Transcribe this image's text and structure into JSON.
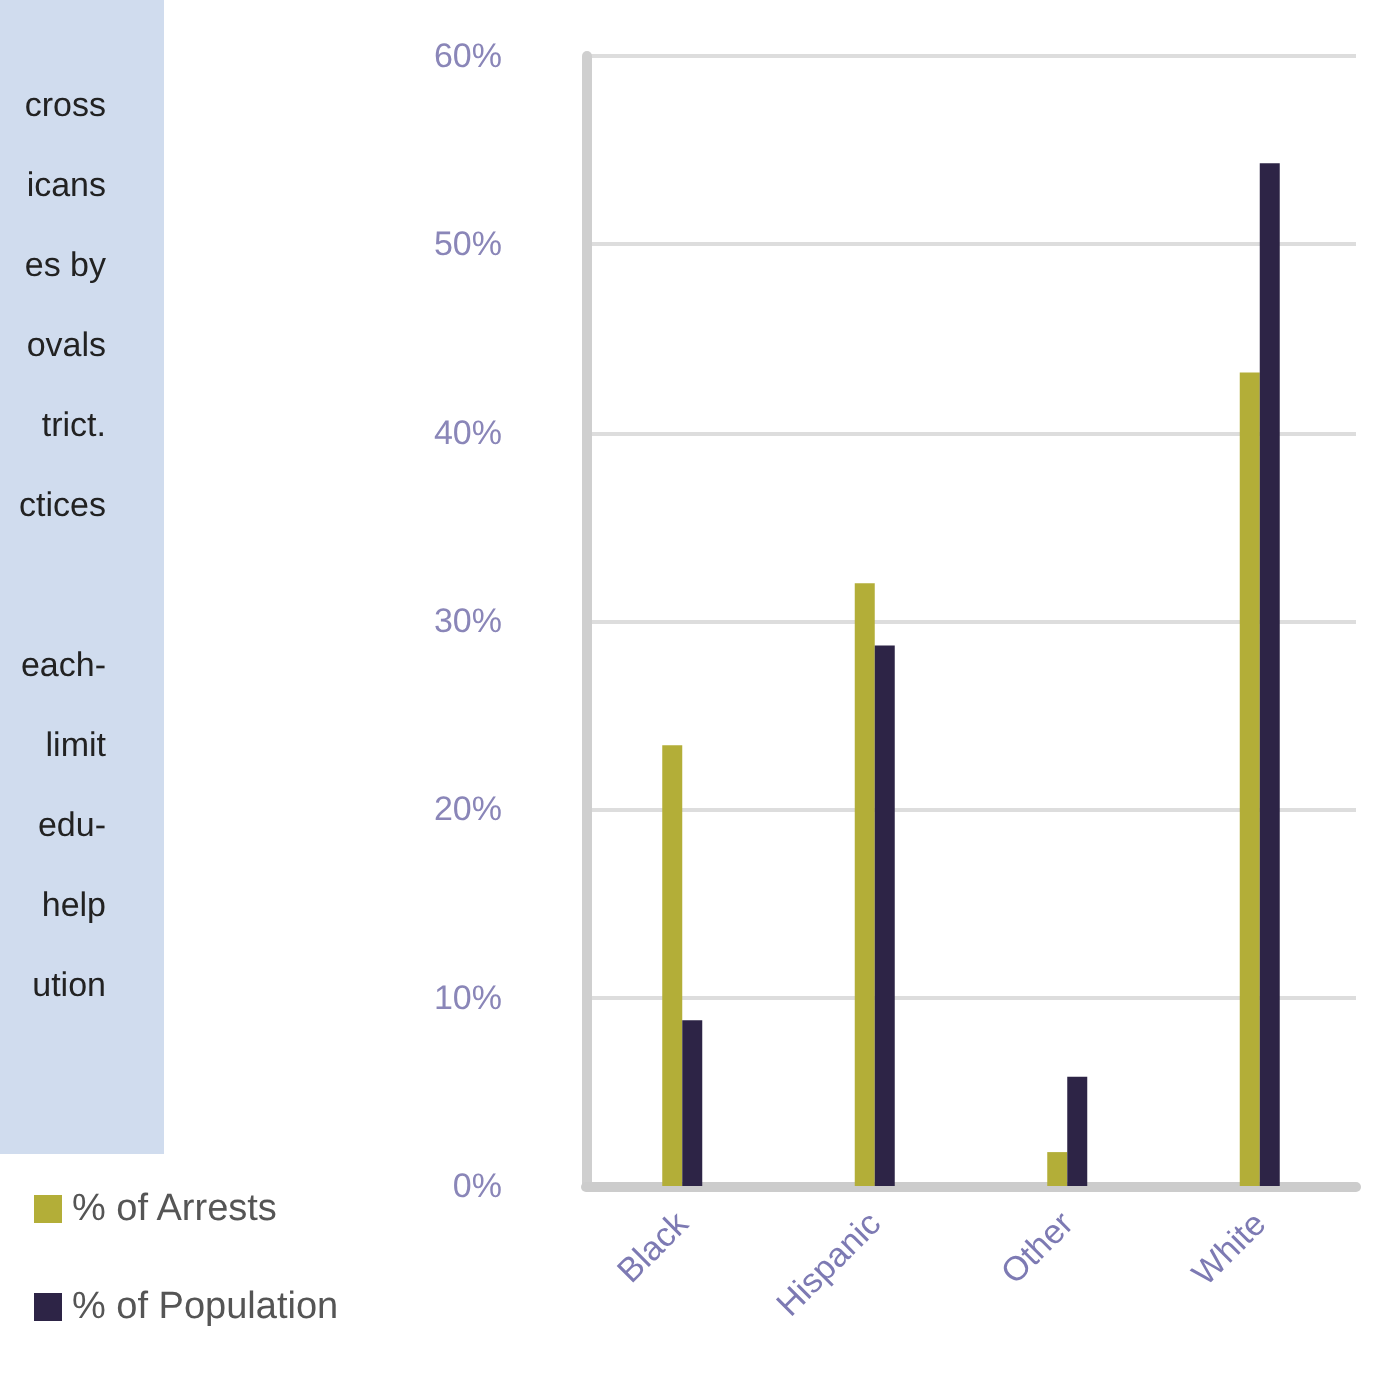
{
  "chart_data": [
    {
      "type": "bar",
      "categories": [
        "Black",
        "Hispanic",
        "Other",
        "White"
      ],
      "series": [
        {
          "name": "% of Arrests",
          "color": "#b3ae38",
          "values": [
            23.4,
            32,
            1.8,
            43.2
          ]
        },
        {
          "name": "% of Population",
          "color": "#2d2446",
          "values": [
            8.8,
            28.7,
            5.8,
            54.3
          ]
        }
      ],
      "ylim": [
        0,
        60
      ],
      "yticks": [
        {
          "value": 0,
          "label": "0%"
        },
        {
          "value": 10,
          "label": "10%"
        },
        {
          "value": 20,
          "label": "20%"
        },
        {
          "value": 30,
          "label": "30%"
        },
        {
          "value": 40,
          "label": "40%"
        },
        {
          "value": 50,
          "label": "50%"
        },
        {
          "value": 60,
          "label": "60%"
        }
      ],
      "grid": "y",
      "legend": "bottom left"
    },
    {
      "type": "other",
      "annotations": [
        "cross\nicans\nes by\novals\ntrict.\nctices",
        "each-\nlimit\nedu-\nhelp\nution"
      ]
    }
  ]
}
